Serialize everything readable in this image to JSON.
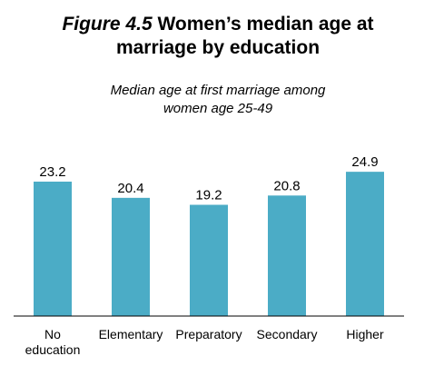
{
  "title": {
    "figure_label": "Figure 4.5",
    "text_line1": "Women’s median age at",
    "text_line2": "marriage by education"
  },
  "subtitle": {
    "line1": "Median age at first marriage among",
    "line2": "women age 25-49"
  },
  "chart_data": {
    "type": "bar",
    "title": "Figure 4.5 Women’s median age at marriage by education",
    "subtitle": "Median age at first marriage among women age 25-49",
    "categories": [
      "No education",
      "Elementary",
      "Preparatory",
      "Secondary",
      "Higher"
    ],
    "category_label_lines": [
      [
        "No",
        "education"
      ],
      [
        "Elementary"
      ],
      [
        "Preparatory"
      ],
      [
        "Secondary"
      ],
      [
        "Higher"
      ]
    ],
    "values": [
      23.2,
      20.4,
      19.2,
      20.8,
      24.9
    ],
    "value_labels": [
      "23.2",
      "20.4",
      "19.2",
      "20.8",
      "24.9"
    ],
    "ylim": [
      0,
      27.9
    ],
    "bar_color": "#4bacc6",
    "axis_color": "#000000",
    "grid": false,
    "legend": "none"
  }
}
